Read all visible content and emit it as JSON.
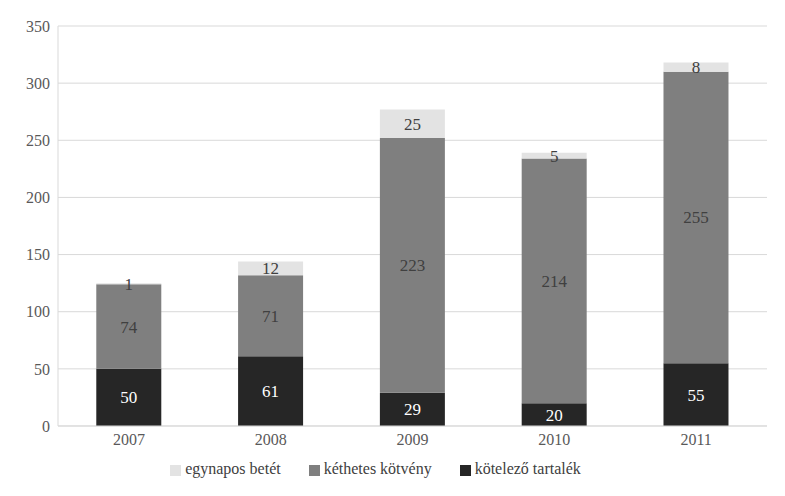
{
  "chart_data": {
    "type": "bar",
    "stacked": true,
    "data_labels": true,
    "grid": true,
    "legend": "bottom",
    "categories": [
      "2007",
      "2008",
      "2009",
      "2010",
      "2011"
    ],
    "series": [
      {
        "name": "kötelező tartalék",
        "color": "#262626",
        "values": [
          50,
          61,
          29,
          20,
          55
        ]
      },
      {
        "name": "kéthetes kötvény",
        "color": "#7f7f7f",
        "values": [
          74,
          71,
          223,
          214,
          255
        ]
      },
      {
        "name": "egynapos betét",
        "color": "#e3e3e3",
        "values": [
          1,
          12,
          25,
          5,
          8
        ]
      }
    ],
    "ylim": [
      0,
      350
    ],
    "yticks": [
      0,
      50,
      100,
      150,
      200,
      250,
      300,
      350
    ]
  }
}
